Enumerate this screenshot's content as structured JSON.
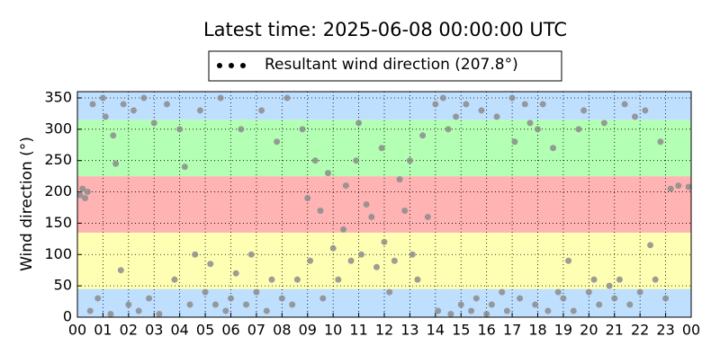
{
  "chart_data": {
    "type": "scatter",
    "title": "Latest time: 2025-06-08 00:00:00 UTC",
    "y_label": "Wind direction (°)",
    "xlim": [
      0,
      24
    ],
    "ylim": [
      0,
      360
    ],
    "xticks": [
      {
        "value": 0,
        "label": "00"
      },
      {
        "value": 1,
        "label": "01"
      },
      {
        "value": 2,
        "label": "02"
      },
      {
        "value": 3,
        "label": "03"
      },
      {
        "value": 4,
        "label": "04"
      },
      {
        "value": 5,
        "label": "05"
      },
      {
        "value": 6,
        "label": "06"
      },
      {
        "value": 7,
        "label": "07"
      },
      {
        "value": 8,
        "label": "08"
      },
      {
        "value": 9,
        "label": "09"
      },
      10,
      11,
      12,
      13,
      14,
      15,
      16,
      17,
      18,
      19,
      20,
      21,
      22,
      23,
      {
        "value": 24,
        "label": "00"
      }
    ],
    "yticks": [
      0,
      50,
      100,
      150,
      200,
      250,
      300,
      350
    ],
    "grid": true,
    "bands": [
      {
        "from": 0,
        "to": 45,
        "color": "#bfdfff"
      },
      {
        "from": 45,
        "to": 135,
        "color": "#ffffb3"
      },
      {
        "from": 135,
        "to": 225,
        "color": "#ffb3b3"
      },
      {
        "from": 225,
        "to": 315,
        "color": "#b3ffb3"
      },
      {
        "from": 315,
        "to": 360,
        "color": "#bfdfff"
      }
    ],
    "series": [
      {
        "name": "Resultant wind direction (207.8°)",
        "color": "#8c8c8c",
        "legend_color": "#000000",
        "x": [
          0.1,
          0.2,
          0.3,
          0.4,
          0.5,
          0.6,
          0.8,
          1.0,
          1.1,
          1.3,
          1.4,
          1.5,
          1.7,
          1.8,
          2.0,
          2.2,
          2.4,
          2.6,
          2.8,
          3.0,
          3.2,
          3.5,
          3.8,
          4.0,
          4.2,
          4.4,
          4.6,
          4.8,
          5.0,
          5.2,
          5.4,
          5.6,
          5.8,
          6.0,
          6.2,
          6.4,
          6.6,
          6.8,
          7.0,
          7.2,
          7.4,
          7.6,
          7.8,
          8.0,
          8.2,
          8.4,
          8.6,
          8.8,
          9.0,
          9.1,
          9.3,
          9.5,
          9.6,
          9.8,
          10.0,
          10.2,
          10.4,
          10.5,
          10.7,
          10.9,
          11.0,
          11.1,
          11.3,
          11.5,
          11.7,
          11.9,
          12.0,
          12.2,
          12.4,
          12.6,
          12.8,
          13.0,
          13.1,
          13.3,
          13.5,
          13.7,
          14.0,
          14.1,
          14.3,
          14.5,
          14.6,
          14.8,
          15.0,
          15.2,
          15.4,
          15.6,
          15.8,
          16.0,
          16.2,
          16.4,
          16.6,
          16.8,
          17.0,
          17.1,
          17.3,
          17.5,
          17.7,
          17.9,
          18.0,
          18.2,
          18.4,
          18.6,
          18.8,
          19.0,
          19.2,
          19.4,
          19.6,
          19.8,
          20.0,
          20.2,
          20.4,
          20.6,
          20.8,
          21.0,
          21.2,
          21.4,
          21.6,
          21.8,
          22.0,
          22.2,
          22.4,
          22.6,
          22.8,
          23.0,
          23.2,
          23.5,
          23.9
        ],
        "values": [
          195,
          205,
          190,
          200,
          10,
          340,
          30,
          350,
          320,
          5,
          290,
          245,
          75,
          340,
          20,
          330,
          10,
          350,
          30,
          310,
          5,
          340,
          60,
          300,
          240,
          20,
          100,
          330,
          40,
          85,
          20,
          350,
          10,
          30,
          70,
          300,
          20,
          100,
          40,
          330,
          10,
          60,
          280,
          30,
          350,
          20,
          60,
          300,
          190,
          90,
          250,
          170,
          30,
          230,
          110,
          60,
          140,
          210,
          90,
          250,
          310,
          100,
          180,
          160,
          80,
          270,
          120,
          40,
          90,
          220,
          170,
          250,
          100,
          60,
          290,
          160,
          340,
          10,
          350,
          300,
          5,
          320,
          20,
          340,
          10,
          30,
          330,
          5,
          20,
          320,
          40,
          10,
          350,
          280,
          30,
          340,
          310,
          20,
          300,
          340,
          10,
          270,
          40,
          30,
          90,
          10,
          300,
          330,
          40,
          60,
          20,
          310,
          50,
          30,
          60,
          340,
          20,
          320,
          40,
          330,
          115,
          60,
          280,
          30,
          205,
          210,
          208
        ]
      }
    ]
  }
}
